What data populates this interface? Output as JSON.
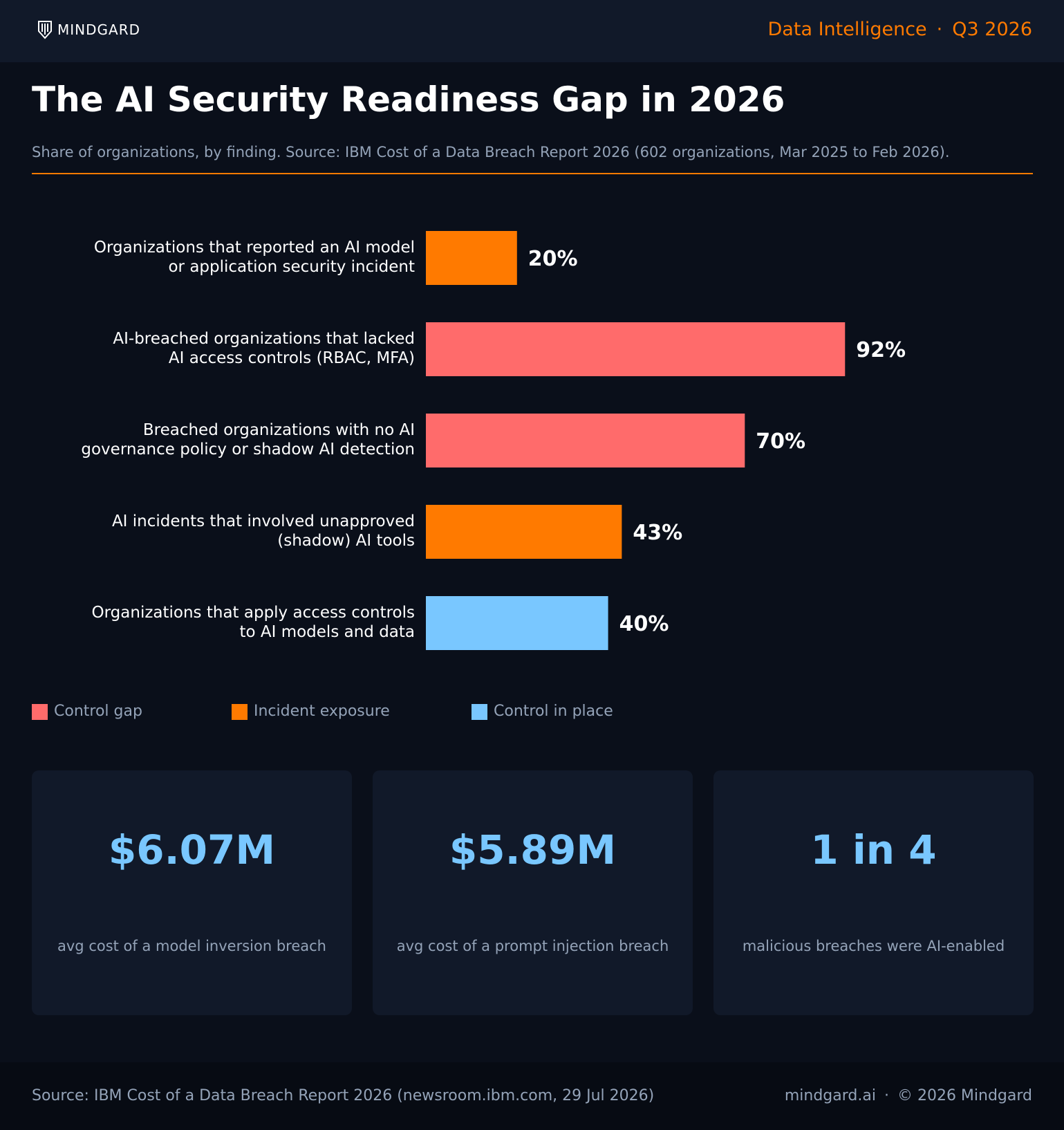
{
  "header": {
    "brand": "MINDGARD",
    "logo_icon": "shield-logo-icon",
    "section": "Data Intelligence",
    "separator": "·",
    "period": "Q3 2026"
  },
  "title": "The AI Security Readiness Gap in 2026",
  "subtitle": "Share of organizations, by finding. Source: IBM Cost of a Data Breach Report 2026 (602 organizations, Mar 2025 to Feb 2026).",
  "colors": {
    "accent": "#ff7a00",
    "control_gap": "#ff6b6b",
    "incident_exposure": "#ff7a00",
    "control_in_place": "#79c7ff"
  },
  "chart_data": {
    "type": "bar",
    "orientation": "horizontal",
    "categories": [
      [
        "Organizations that reported an AI model",
        "or application security incident"
      ],
      [
        "AI-breached organizations that lacked",
        "AI access controls (RBAC, MFA)"
      ],
      [
        "Breached organizations with no AI",
        "governance policy or shadow AI detection"
      ],
      [
        "AI incidents that involved unapproved",
        "(shadow) AI tools"
      ],
      [
        "Organizations that apply access controls",
        "to AI models and data"
      ]
    ],
    "values": [
      20,
      92,
      70,
      43,
      40
    ],
    "value_labels": [
      "20%",
      "92%",
      "70%",
      "43%",
      "40%"
    ],
    "groups": [
      "incident_exposure",
      "control_gap",
      "control_gap",
      "incident_exposure",
      "control_in_place"
    ],
    "xlim": [
      0,
      100
    ],
    "unit": "%",
    "grid": false
  },
  "legend": [
    {
      "label": "Control gap",
      "color": "#ff6b6b"
    },
    {
      "label": "Incident exposure",
      "color": "#ff7a00"
    },
    {
      "label": "Control in place",
      "color": "#79c7ff"
    }
  ],
  "stats": [
    {
      "value": "$6.07M",
      "caption": "avg cost of a model inversion breach"
    },
    {
      "value": "$5.89M",
      "caption": "avg cost of a prompt injection breach"
    },
    {
      "value": "1 in 4",
      "caption": "malicious breaches were AI-enabled"
    }
  ],
  "footer": {
    "source": "Source: IBM Cost of a Data Breach Report 2026 (newsroom.ibm.com, 29 Jul 2026)",
    "site": "mindgard.ai",
    "separator": "·",
    "copyright": "© 2026 Mindgard"
  }
}
